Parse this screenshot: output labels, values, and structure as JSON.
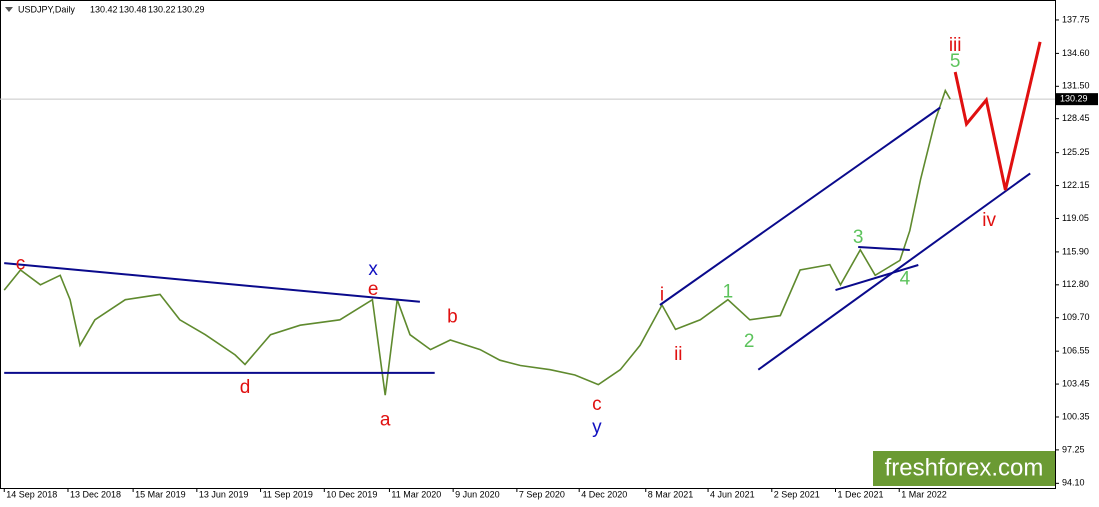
{
  "chart_data": {
    "type": "line",
    "title": "USDJPY,Daily",
    "ohlc": [
      {
        "value": 130.42,
        "label": "130.42"
      },
      {
        "value": 130.48,
        "label": "130.48"
      },
      {
        "value": 130.22,
        "label": "130.22"
      },
      {
        "value": 130.29,
        "label": "130.29"
      }
    ],
    "last_price": 130.29,
    "watermark": "freshforex.com",
    "xlim": [
      "2018-09-08",
      "2022-10-07"
    ],
    "ylim": [
      93.66,
      139.63
    ],
    "yticks": [
      137.75,
      {
        "value": 134.6,
        "label": "134.60"
      },
      {
        "value": 131.5,
        "label": "131.50"
      },
      128.45,
      125.25,
      122.15,
      119.05,
      {
        "value": 115.9,
        "label": "115.90"
      },
      {
        "value": 112.8,
        "label": "112.80"
      },
      {
        "value": 109.7,
        "label": "109.70"
      },
      106.55,
      103.45,
      100.35,
      97.25,
      {
        "value": 94.1,
        "label": "94.10"
      }
    ],
    "xticks": [
      {
        "value": "2018-09-14",
        "label": "14 Sep 2018"
      },
      {
        "value": "2018-12-13",
        "label": "13 Dec 2018"
      },
      {
        "value": "2019-03-15",
        "label": "15 Mar 2019"
      },
      {
        "value": "2019-06-13",
        "label": "13 Jun 2019"
      },
      {
        "value": "2019-09-11",
        "label": "11 Sep 2019"
      },
      {
        "value": "2019-12-10",
        "label": "10 Dec 2019"
      },
      {
        "value": "2020-03-11",
        "label": "11 Mar 2020"
      },
      {
        "value": "2020-06-09",
        "label": "9 Jun 2020"
      },
      {
        "value": "2020-09-07",
        "label": "7 Sep 2020"
      },
      {
        "value": "2020-12-04",
        "label": "4 Dec 2020"
      },
      {
        "value": "2021-03-08",
        "label": "8 Mar 2021"
      },
      {
        "value": "2021-06-04",
        "label": "4 Jun 2021"
      },
      {
        "value": "2021-09-02",
        "label": "2 Sep 2021"
      },
      {
        "value": "2021-12-01",
        "label": "1 Dec 2021"
      },
      {
        "value": "2022-03-01",
        "label": "1 Mar 2022"
      }
    ],
    "series": [
      {
        "color": "#5f8a2e",
        "x": [
          "2018-09-14",
          "2018-10-07",
          "2018-11-04",
          "2018-12-02",
          "2018-12-16",
          "2018-12-30",
          "2019-01-20",
          "2019-03-04",
          "2019-04-22",
          "2019-05-20",
          "2019-06-25",
          "2019-08-06",
          "2019-08-20",
          "2019-09-25",
          "2019-11-06",
          "2020-01-01",
          "2020-02-16",
          "2020-03-05",
          "2020-03-22",
          "2020-04-09",
          "2020-05-08",
          "2020-06-05",
          "2020-07-17",
          "2020-08-14",
          "2020-09-12",
          "2020-10-24",
          "2020-11-28",
          "2020-12-31",
          "2021-01-31",
          "2021-02-28",
          "2021-03-31",
          "2021-04-19",
          "2021-05-24",
          "2021-07-02",
          "2021-08-02",
          "2021-09-14",
          "2021-10-12",
          "2021-11-23",
          "2021-12-08",
          "2022-01-05",
          "2022-01-26",
          "2022-03-02",
          "2022-03-16",
          "2022-03-31",
          "2022-04-21",
          "2022-05-05",
          "2022-05-12"
        ],
        "values": [
          112.3,
          114.2,
          112.8,
          113.7,
          111.4,
          107.1,
          109.5,
          111.4,
          111.9,
          109.5,
          108.1,
          106.2,
          105.3,
          108.1,
          109.0,
          109.5,
          111.4,
          102.4,
          111.4,
          108.1,
          106.7,
          107.6,
          106.7,
          105.7,
          105.2,
          104.8,
          104.3,
          103.4,
          104.8,
          107.1,
          110.9,
          108.6,
          109.5,
          111.4,
          109.5,
          109.9,
          114.2,
          114.7,
          112.8,
          116.1,
          113.7,
          115.1,
          117.9,
          122.7,
          128.3,
          131.1,
          130.29
        ]
      }
    ],
    "projection": {
      "color": "#e01010",
      "x": [
        "2022-05-19",
        "2022-06-04",
        "2022-07-02",
        "2022-07-29",
        "2022-09-16"
      ],
      "values": [
        132.85,
        127.95,
        130.21,
        121.73,
        135.68
      ]
    },
    "trendlines": [
      {
        "color": "#0a0a8c",
        "x": [
          "2018-09-14",
          "2020-04-23"
        ],
        "values": [
          114.85,
          111.2
        ]
      },
      {
        "color": "#0a0a8c",
        "x": [
          "2018-09-14",
          "2020-05-14"
        ],
        "values": [
          104.5,
          104.5
        ]
      },
      {
        "color": "#0a0a8c",
        "x": [
          "2021-03-28",
          "2022-04-28"
        ],
        "values": [
          110.9,
          129.5
        ]
      },
      {
        "color": "#0a0a8c",
        "x": [
          "2021-08-14",
          "2022-09-02"
        ],
        "values": [
          104.8,
          123.3
        ]
      },
      {
        "color": "#0a0a8c",
        "x": [
          "2021-12-01",
          "2022-03-28"
        ],
        "values": [
          112.3,
          114.67
        ]
      },
      {
        "color": "#0a0a8c",
        "x": [
          "2022-01-02",
          "2022-03-16"
        ],
        "values": [
          116.36,
          116.08
        ]
      }
    ],
    "annotations": [
      {
        "text": "c",
        "x": "2018-10-07",
        "y": 114.7,
        "color": "#e01010"
      },
      {
        "text": "d",
        "x": "2019-08-20",
        "y": 103.1,
        "color": "#e01010"
      },
      {
        "text": "x",
        "x": "2020-02-17",
        "y": 114.2,
        "color": "#1010c0"
      },
      {
        "text": "e",
        "x": "2020-02-17",
        "y": 112.3,
        "color": "#e01010"
      },
      {
        "text": "a",
        "x": "2020-03-05",
        "y": 100.0,
        "color": "#e01010"
      },
      {
        "text": "b",
        "x": "2020-06-08",
        "y": 109.7,
        "color": "#e01010"
      },
      {
        "text": "c",
        "x": "2020-12-29",
        "y": 101.5,
        "color": "#e01010"
      },
      {
        "text": "y",
        "x": "2020-12-29",
        "y": 99.3,
        "color": "#1010c0"
      },
      {
        "text": "i",
        "x": "2021-03-31",
        "y": 111.8,
        "color": "#e01010"
      },
      {
        "text": "ii",
        "x": "2021-04-23",
        "y": 106.2,
        "color": "#e01010"
      },
      {
        "text": "1",
        "x": "2021-07-02",
        "y": 112.1,
        "color": "#5cc35c"
      },
      {
        "text": "2",
        "x": "2021-08-01",
        "y": 107.4,
        "color": "#5cc35c"
      },
      {
        "text": "3",
        "x": "2022-01-02",
        "y": 117.2,
        "color": "#5cc35c"
      },
      {
        "text": "4",
        "x": "2022-03-09",
        "y": 113.3,
        "color": "#5cc35c"
      },
      {
        "text": "5",
        "x": "2022-05-19",
        "y": 133.8,
        "color": "#5cc35c"
      },
      {
        "text": "iii",
        "x": "2022-05-19",
        "y": 135.3,
        "color": "#e01010"
      },
      {
        "text": "iv",
        "x": "2022-07-06",
        "y": 118.8,
        "color": "#e01010"
      }
    ]
  }
}
